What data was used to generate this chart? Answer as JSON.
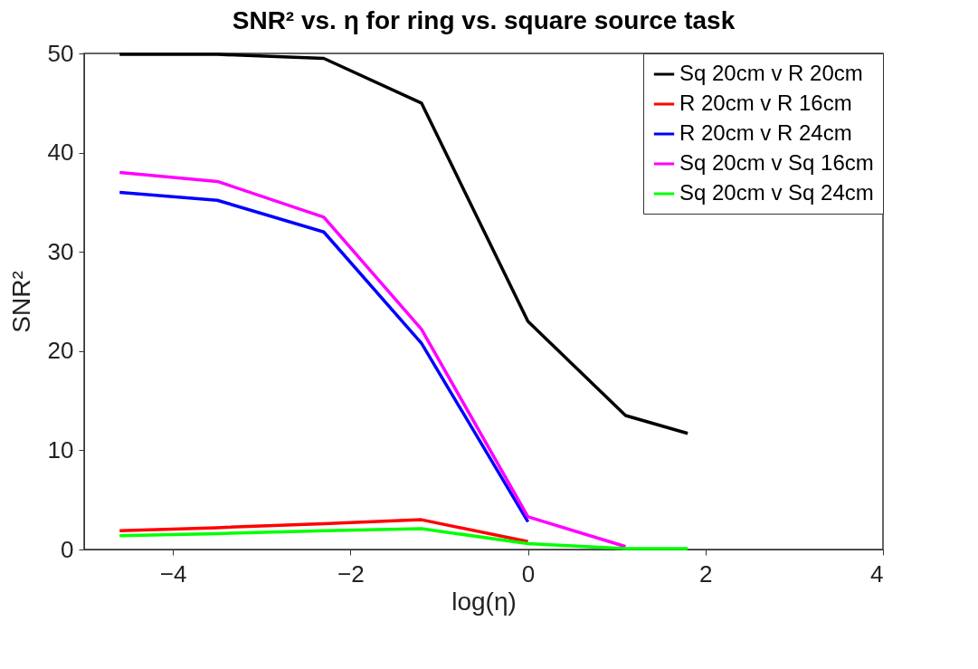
{
  "chart_data": {
    "type": "line",
    "title": "SNR² vs. η for ring vs. square source task",
    "xlabel": "log(η)",
    "ylabel": "SNR²",
    "x": [
      -4.6,
      -3.5,
      -2.3,
      -1.2,
      0,
      1.1,
      1.8
    ],
    "series": [
      {
        "name": "Sq 20cm v R 20cm",
        "color": "#000000",
        "values": [
          49.9,
          49.9,
          49.5,
          45,
          23,
          13.5,
          11.7
        ]
      },
      {
        "name": "R 20cm v R 16cm",
        "color": "#ff0000",
        "values": [
          1.9,
          2.2,
          2.6,
          3.0,
          0.8,
          null,
          null
        ]
      },
      {
        "name": "R 20cm v R 24cm",
        "color": "#0000ff",
        "values": [
          36,
          35.2,
          32,
          20.8,
          2.8,
          null,
          null
        ]
      },
      {
        "name": "Sq 20cm v Sq 16cm",
        "color": "#ff00ff",
        "values": [
          38,
          37.1,
          33.5,
          22.2,
          3.3,
          0.3,
          null
        ]
      },
      {
        "name": "Sq 20cm v Sq 24cm",
        "color": "#00ff00",
        "values": [
          1.4,
          1.6,
          1.9,
          2.1,
          0.6,
          0.1,
          0.1
        ]
      }
    ],
    "xlim": [
      -5,
      4
    ],
    "xticks": [
      -4,
      -2,
      0,
      2,
      4
    ],
    "ylim": [
      0,
      50
    ],
    "yticks": [
      0,
      10,
      20,
      30,
      40,
      50
    ],
    "grid": false,
    "legend": "top right",
    "marker": "none",
    "line_style": "solid"
  }
}
